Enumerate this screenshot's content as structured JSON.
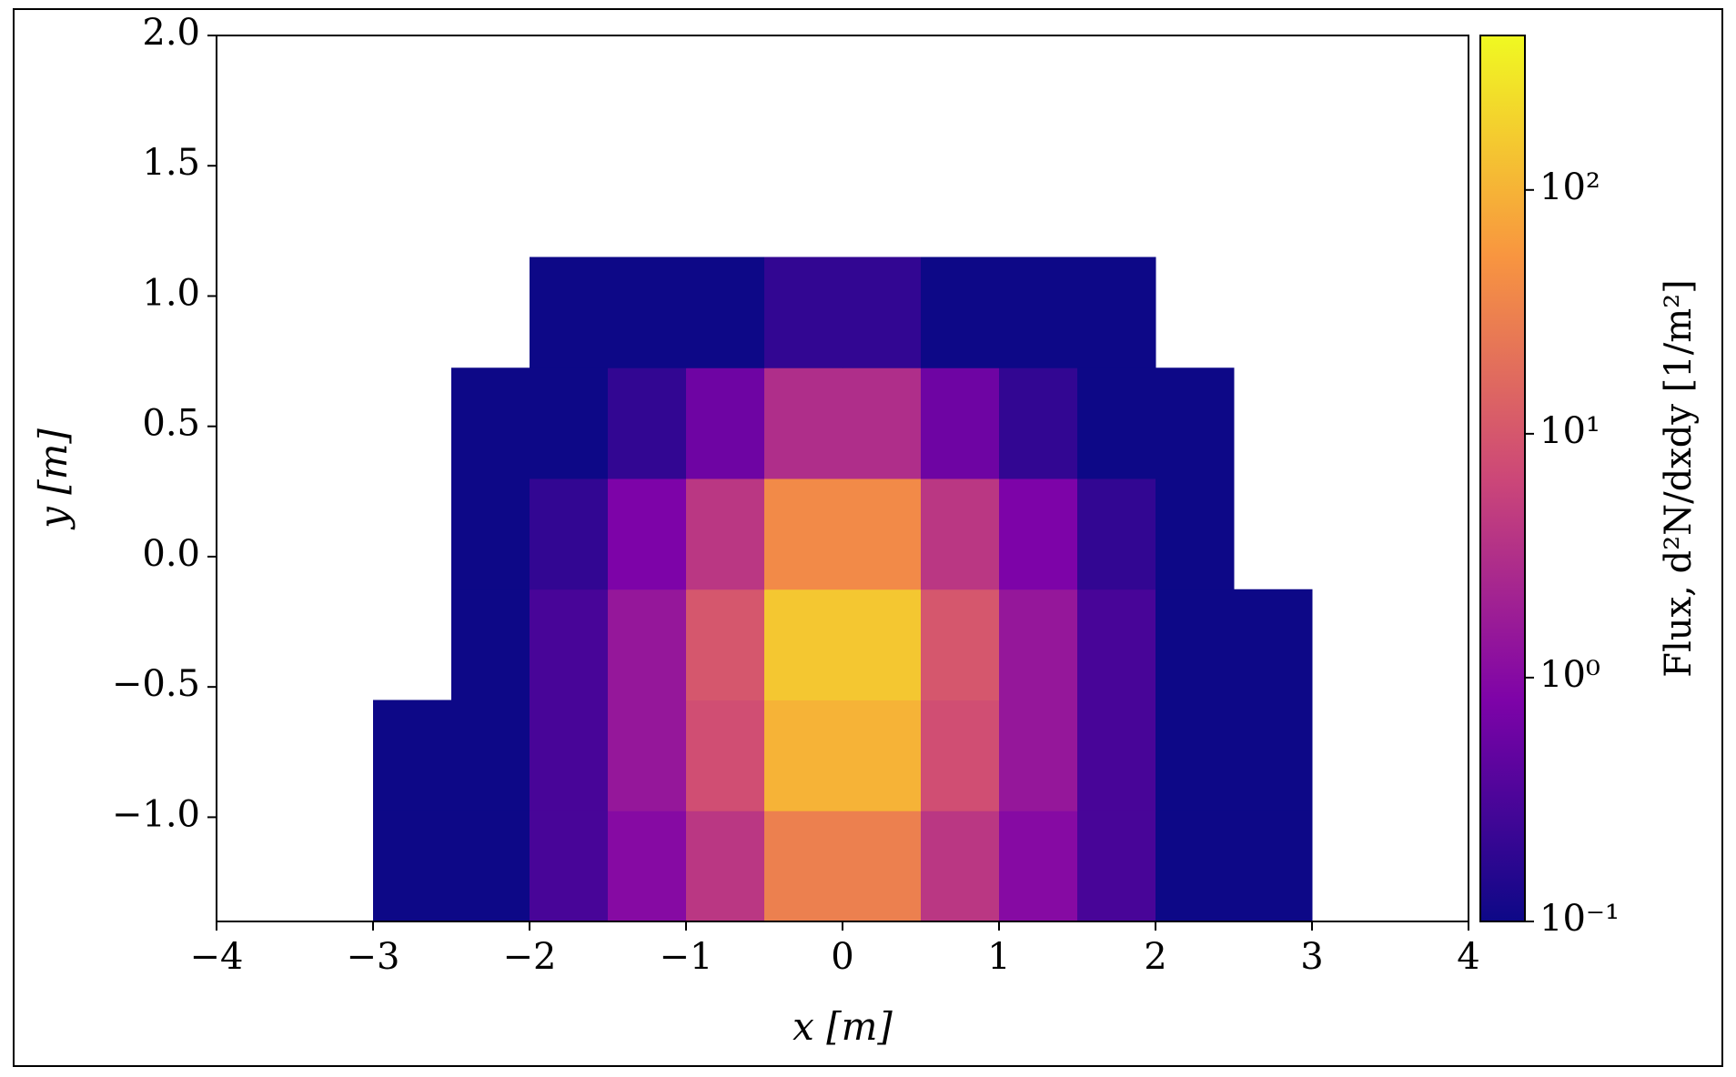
{
  "chart_data": {
    "type": "heatmap",
    "xlabel": "x [m]",
    "ylabel": "y [m]",
    "colorbar_label": "Flux, d²N/dxdy [1/m²]",
    "colormap": "plasma",
    "log_color": true,
    "x_bins": [
      -4,
      -3.5,
      -3,
      -2.5,
      -2,
      -1.5,
      -1,
      -0.5,
      0,
      0.5,
      1,
      1.5,
      2,
      2.5,
      3,
      3.5,
      4
    ],
    "y_bins": [
      -1.4,
      -0.975,
      -0.55,
      -0.125,
      0.3,
      0.725,
      1.15,
      1.575,
      2.0
    ],
    "z": [
      [
        null,
        null,
        0.1,
        0.1,
        0.3,
        1,
        4,
        30,
        30,
        4,
        1,
        0.3,
        0.1,
        0.1,
        null,
        null
      ],
      [
        null,
        null,
        0.1,
        0.1,
        0.3,
        1.5,
        8,
        100,
        100,
        8,
        1.5,
        0.3,
        0.1,
        0.1,
        null,
        null
      ],
      [
        null,
        null,
        null,
        0.1,
        0.3,
        1.5,
        10,
        150,
        150,
        10,
        1.5,
        0.3,
        0.1,
        0.1,
        null,
        null
      ],
      [
        null,
        null,
        null,
        0.1,
        0.2,
        0.8,
        4,
        40,
        40,
        4,
        0.8,
        0.2,
        0.1,
        null,
        null,
        null
      ],
      [
        null,
        null,
        null,
        0.1,
        0.1,
        0.2,
        0.6,
        3,
        3,
        0.6,
        0.2,
        0.1,
        0.1,
        null,
        null,
        null
      ],
      [
        null,
        null,
        null,
        null,
        0.1,
        0.1,
        0.1,
        0.2,
        0.2,
        0.1,
        0.1,
        0.1,
        null,
        null,
        null,
        null
      ],
      [
        null,
        null,
        null,
        null,
        null,
        null,
        null,
        null,
        null,
        null,
        null,
        null,
        null,
        null,
        null,
        null
      ],
      [
        null,
        null,
        null,
        null,
        null,
        null,
        null,
        null,
        null,
        null,
        null,
        null,
        null,
        null,
        null,
        null
      ]
    ],
    "xlim": [
      -4,
      4
    ],
    "xticks": [
      {
        "value": -4,
        "label": "−4"
      },
      {
        "value": -3,
        "label": "−3"
      },
      {
        "value": -2,
        "label": "−2"
      },
      {
        "value": -1,
        "label": "−1"
      },
      0,
      1,
      2,
      3,
      4
    ],
    "ylim": [
      -1.4,
      2.0
    ],
    "yticks": [
      {
        "value": -1,
        "label": "−1.0"
      },
      {
        "value": -0.5,
        "label": "−0.5"
      },
      {
        "value": 0,
        "label": "0.0"
      },
      0.5,
      {
        "value": 1,
        "label": "1.0"
      },
      1.5,
      {
        "value": 2,
        "label": "2.0"
      }
    ],
    "clim": [
      0.1,
      430
    ],
    "cticks": [
      {
        "value": 0.1,
        "label": "10⁻¹"
      },
      {
        "value": 1,
        "label": "10⁰"
      },
      {
        "value": 10,
        "label": "10¹"
      },
      {
        "value": 100,
        "label": "10²"
      }
    ]
  }
}
